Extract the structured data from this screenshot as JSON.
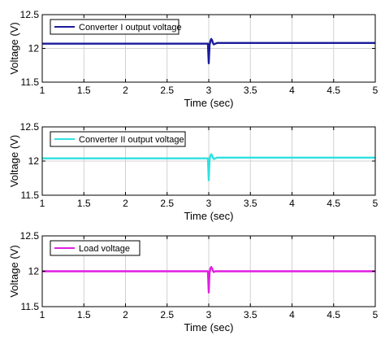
{
  "chart_data": [
    {
      "type": "line",
      "xlabel": "Time (sec)",
      "ylabel": "Voltage (V)",
      "xlim": [
        1,
        5
      ],
      "ylim": [
        11.5,
        12.5
      ],
      "xticks": [
        1,
        1.5,
        2,
        2.5,
        3,
        3.5,
        4,
        4.5,
        5
      ],
      "yticks": [
        11.5,
        12,
        12.5
      ],
      "grid": true,
      "legend_position": "top-left",
      "series": [
        {
          "name": "Converter I output voltage",
          "color": "#1a1a9c",
          "x": [
            1.0,
            2.98,
            2.99,
            3.0,
            3.005,
            3.01,
            3.02,
            3.03,
            3.04,
            3.05,
            3.06,
            3.08,
            3.1,
            3.15,
            5.0
          ],
          "y": [
            12.07,
            12.07,
            12.07,
            11.78,
            11.92,
            12.05,
            12.11,
            12.14,
            12.12,
            12.08,
            12.06,
            12.07,
            12.08,
            12.08,
            12.08
          ]
        }
      ]
    },
    {
      "type": "line",
      "xlabel": "Time (sec)",
      "ylabel": "Voltage (V)",
      "xlim": [
        1,
        5
      ],
      "ylim": [
        11.5,
        12.5
      ],
      "xticks": [
        1,
        1.5,
        2,
        2.5,
        3,
        3.5,
        4,
        4.5,
        5
      ],
      "yticks": [
        11.5,
        12,
        12.5
      ],
      "grid": true,
      "legend_position": "top-left",
      "series": [
        {
          "name": "Converter II output voltage",
          "color": "#2fe0e0",
          "x": [
            1.0,
            2.98,
            2.99,
            3.0,
            3.005,
            3.01,
            3.02,
            3.03,
            3.04,
            3.05,
            3.06,
            3.08,
            3.1,
            3.15,
            5.0
          ],
          "y": [
            12.04,
            12.04,
            12.04,
            11.72,
            11.9,
            12.02,
            12.08,
            12.1,
            12.08,
            12.05,
            12.03,
            12.04,
            12.05,
            12.05,
            12.05
          ]
        }
      ]
    },
    {
      "type": "line",
      "xlabel": "Time (sec)",
      "ylabel": "Voltage (V)",
      "xlim": [
        1,
        5
      ],
      "ylim": [
        11.5,
        12.5
      ],
      "xticks": [
        1,
        1.5,
        2,
        2.5,
        3,
        3.5,
        4,
        4.5,
        5
      ],
      "yticks": [
        11.5,
        12,
        12.5
      ],
      "grid": true,
      "legend_position": "top-left",
      "series": [
        {
          "name": "Load voltage",
          "color": "#e01ee0",
          "x": [
            1.0,
            2.98,
            2.99,
            3.0,
            3.005,
            3.01,
            3.02,
            3.03,
            3.04,
            3.05,
            3.06,
            3.08,
            3.1,
            3.15,
            5.0
          ],
          "y": [
            12.0,
            12.0,
            12.0,
            11.7,
            11.86,
            11.98,
            12.04,
            12.06,
            12.04,
            12.01,
            11.99,
            12.0,
            12.0,
            12.0,
            12.0
          ]
        }
      ]
    }
  ]
}
